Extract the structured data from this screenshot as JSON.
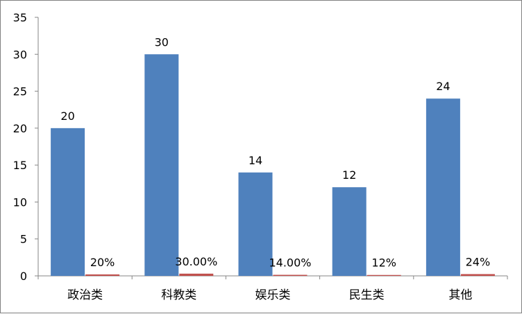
{
  "chart_data": {
    "type": "bar",
    "title": "",
    "xlabel": "",
    "ylabel": "",
    "ylim": [
      0,
      35
    ],
    "y_ticks": [
      0,
      5,
      10,
      15,
      20,
      25,
      30,
      35
    ],
    "grid": false,
    "legend": "none",
    "categories": [
      "政治类",
      "科教类",
      "娱乐类",
      "民生类",
      "其他"
    ],
    "series": [
      {
        "color": "#4F81BD",
        "values": [
          20,
          30,
          14,
          12,
          24
        ],
        "data_labels": [
          "20",
          "30",
          "14",
          "12",
          "24"
        ]
      },
      {
        "color": "#C0504D",
        "values": [
          0.2,
          0.3,
          0.14,
          0.12,
          0.24
        ],
        "data_labels": [
          "20%",
          "30.00%",
          "14.00%",
          "12%",
          "24%"
        ]
      }
    ]
  }
}
